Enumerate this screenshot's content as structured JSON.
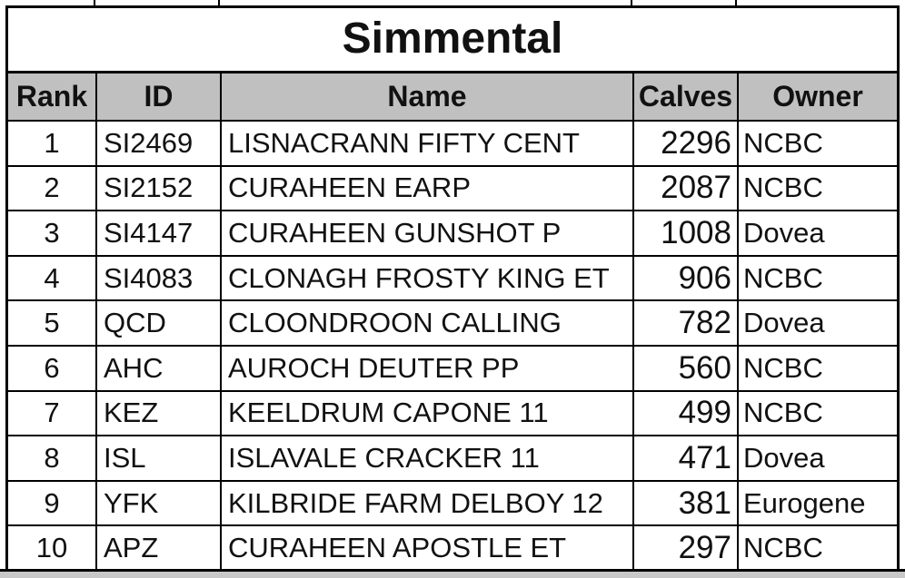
{
  "title": "Simmental",
  "columns": [
    "Rank",
    "ID",
    "Name",
    "Calves",
    "Owner"
  ],
  "rows": [
    {
      "rank": "1",
      "id": "SI2469",
      "name": "LISNACRANN FIFTY CENT",
      "calves": "2296",
      "owner": "NCBC"
    },
    {
      "rank": "2",
      "id": "SI2152",
      "name": "CURAHEEN EARP",
      "calves": "2087",
      "owner": "NCBC"
    },
    {
      "rank": "3",
      "id": "SI4147",
      "name": "CURAHEEN GUNSHOT P",
      "calves": "1008",
      "owner": "Dovea"
    },
    {
      "rank": "4",
      "id": "SI4083",
      "name": "CLONAGH FROSTY KING ET",
      "calves": "906",
      "owner": "NCBC"
    },
    {
      "rank": "5",
      "id": "QCD",
      "name": "CLOONDROON CALLING",
      "calves": "782",
      "owner": "Dovea"
    },
    {
      "rank": "6",
      "id": "AHC",
      "name": "AUROCH DEUTER PP",
      "calves": "560",
      "owner": "NCBC"
    },
    {
      "rank": "7",
      "id": "KEZ",
      "name": "KEELDRUM CAPONE 11",
      "calves": "499",
      "owner": "NCBC"
    },
    {
      "rank": "8",
      "id": "ISL",
      "name": "ISLAVALE CRACKER 11",
      "calves": "471",
      "owner": "Dovea"
    },
    {
      "rank": "9",
      "id": "YFK",
      "name": "KILBRIDE FARM DELBOY 12",
      "calves": "381",
      "owner": "Eurogene"
    },
    {
      "rank": "10",
      "id": "APZ",
      "name": "CURAHEEN APOSTLE ET",
      "calves": "297",
      "owner": "NCBC"
    }
  ]
}
